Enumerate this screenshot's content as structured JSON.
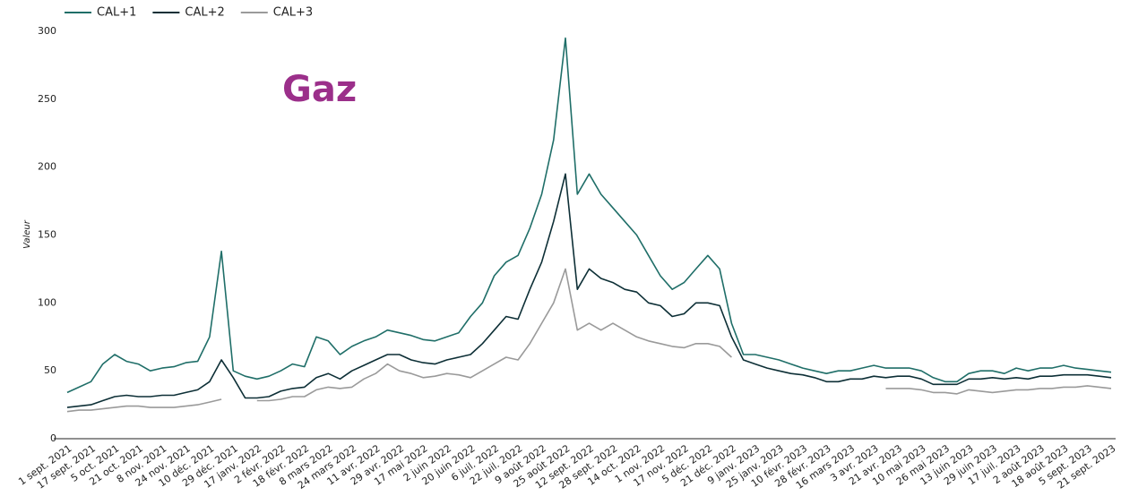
{
  "chart_data": {
    "type": "line",
    "title": "Gaz",
    "y_label": "Valeur",
    "categories": [
      "1 sept. 2021",
      null,
      "17 sept. 2021",
      null,
      "5 oct. 2021",
      null,
      "21 oct. 2021",
      null,
      "8 nov. 2021",
      null,
      "24 nov. 2021",
      null,
      "10 déc. 2021",
      null,
      "29 déc. 2021",
      null,
      "17 janv. 2022",
      null,
      "2 févr. 2022",
      null,
      "18 févr. 2022",
      null,
      "8 mars 2022",
      null,
      "24 mars 2022",
      null,
      "11 avr. 2022",
      null,
      "29 avr. 2022",
      null,
      "17 mai 2022",
      null,
      "2 juin 2022",
      null,
      "20 juin 2022",
      null,
      "6 juil. 2022",
      null,
      "22 juil. 2022",
      null,
      "9 août 2022",
      null,
      "25 août 2022",
      null,
      "12 sept. 2022",
      null,
      "28 sept. 2022",
      null,
      "14 oct. 2022",
      null,
      "1 nov. 2022",
      null,
      "17 nov. 2022",
      null,
      "5 déc. 2022",
      null,
      "21 déc. 2022",
      null,
      "9 janv. 2023",
      null,
      "25 janv. 2023",
      null,
      "10 févr. 2023",
      null,
      "28 févr. 2023",
      null,
      "16 mars 2023",
      null,
      "3 avr. 2023",
      null,
      "21 avr. 2023",
      null,
      "10 mai 2023",
      null,
      "26 mai 2023",
      null,
      "13 juin 2023",
      null,
      "29 juin 2023",
      null,
      "17 juil. 2023",
      null,
      "2 août 2023",
      null,
      "18 août 2023",
      null,
      "5 sept. 2023",
      null,
      "21 sept. 2023"
    ],
    "series": [
      {
        "name": "CAL+1",
        "color": "#1f6e68",
        "values": [
          34,
          38,
          42,
          55,
          62,
          57,
          55,
          50,
          52,
          53,
          56,
          57,
          75,
          138,
          50,
          46,
          44,
          46,
          50,
          55,
          53,
          75,
          72,
          62,
          68,
          72,
          75,
          80,
          78,
          76,
          73,
          72,
          75,
          78,
          90,
          100,
          120,
          130,
          135,
          155,
          180,
          220,
          295,
          180,
          195,
          180,
          170,
          160,
          150,
          135,
          120,
          110,
          115,
          125,
          135,
          125,
          85,
          62,
          62,
          60,
          58,
          55,
          52,
          50,
          48,
          50,
          50,
          52,
          54,
          52,
          52,
          52,
          50,
          45,
          42,
          42,
          48,
          50,
          50,
          48,
          52,
          50,
          52,
          52,
          54,
          52,
          51,
          50,
          49
        ]
      },
      {
        "name": "CAL+2",
        "color": "#0d2f36",
        "values": [
          23,
          24,
          25,
          28,
          31,
          32,
          31,
          31,
          32,
          32,
          34,
          36,
          42,
          58,
          45,
          30,
          30,
          31,
          35,
          37,
          38,
          45,
          48,
          44,
          50,
          54,
          58,
          62,
          62,
          58,
          56,
          55,
          58,
          60,
          62,
          70,
          80,
          90,
          88,
          110,
          130,
          160,
          195,
          110,
          125,
          118,
          115,
          110,
          108,
          100,
          98,
          90,
          92,
          100,
          100,
          98,
          75,
          58,
          55,
          52,
          50,
          48,
          47,
          45,
          42,
          42,
          44,
          44,
          46,
          45,
          46,
          46,
          44,
          40,
          40,
          40,
          44,
          44,
          45,
          44,
          45,
          44,
          46,
          46,
          47,
          47,
          47,
          46,
          45
        ]
      },
      {
        "name": "CAL+3",
        "color": "#9a9a9a",
        "values": [
          20,
          21,
          21,
          22,
          23,
          24,
          24,
          23,
          23,
          23,
          24,
          25,
          27,
          29,
          null,
          null,
          28,
          28,
          29,
          31,
          31,
          36,
          38,
          37,
          38,
          44,
          48,
          55,
          50,
          48,
          45,
          46,
          48,
          47,
          45,
          50,
          55,
          60,
          58,
          70,
          85,
          100,
          125,
          80,
          85,
          80,
          85,
          80,
          75,
          72,
          70,
          68,
          67,
          70,
          70,
          68,
          60,
          null,
          null,
          null,
          null,
          null,
          null,
          null,
          null,
          null,
          null,
          null,
          null,
          37,
          37,
          37,
          36,
          34,
          34,
          33,
          36,
          35,
          34,
          35,
          36,
          36,
          37,
          37,
          38,
          38,
          39,
          38,
          37
        ]
      }
    ],
    "ylim": [
      0,
      300
    ],
    "yticks": [
      0,
      50,
      100,
      150,
      200,
      250,
      300
    ],
    "grid": false,
    "legend": "top-left"
  }
}
